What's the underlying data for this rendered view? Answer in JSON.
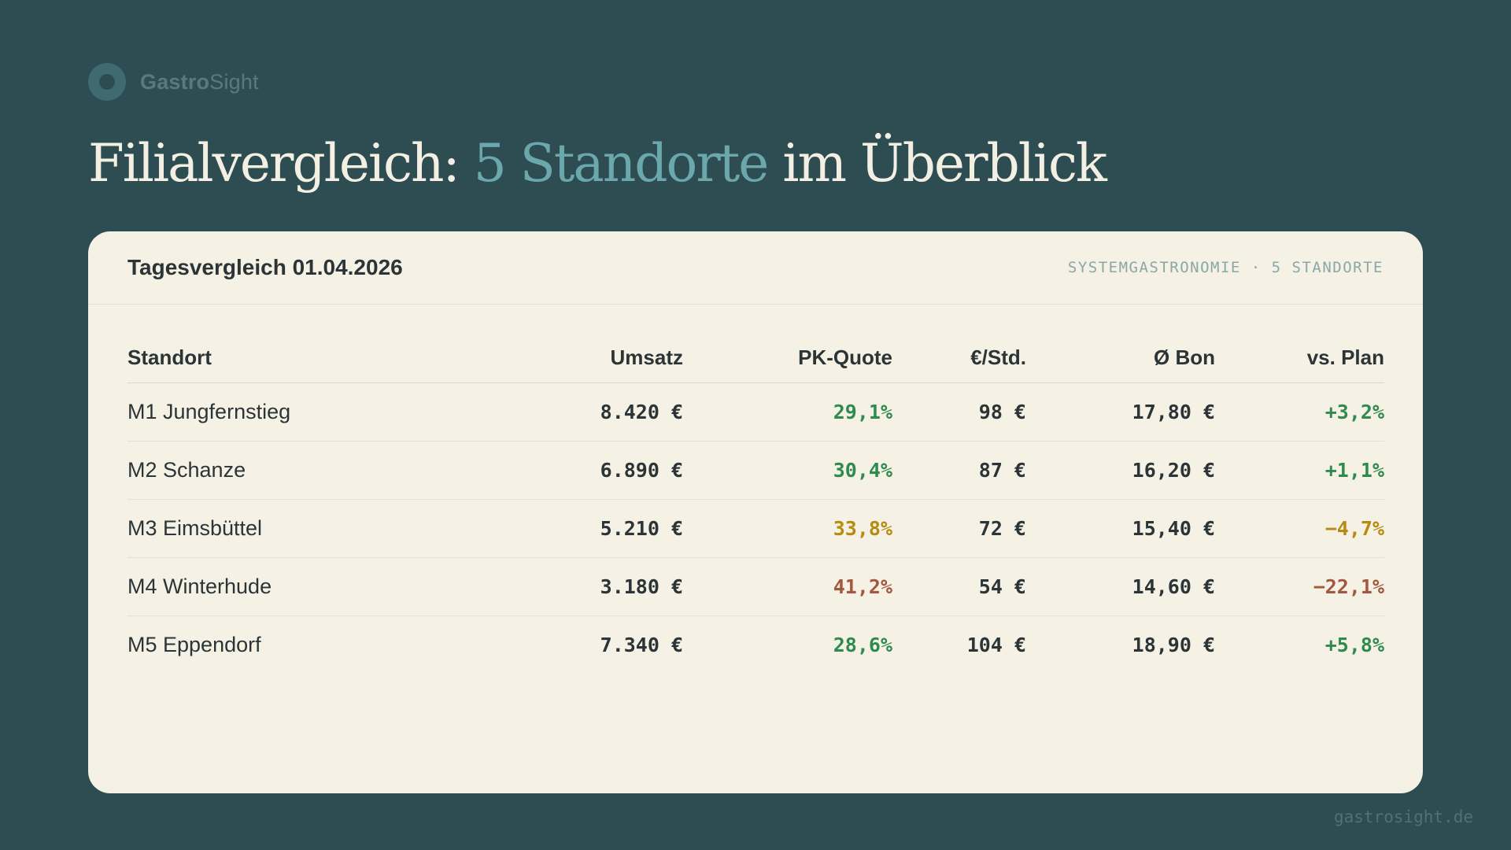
{
  "brand": {
    "bold": "Gastro",
    "light": "Sight",
    "icon": "ring-logo-icon"
  },
  "headline": {
    "prefix": "Filialvergleich: ",
    "accent": "5 Standorte",
    "suffix": " im Überblick"
  },
  "card": {
    "title": "Tagesvergleich 01.04.2026",
    "tag": "SYSTEMGASTRONOMIE · 5 STANDORTE"
  },
  "table": {
    "headers": [
      "Standort",
      "Umsatz",
      "PK-Quote",
      "€/Std.",
      "Ø Bon",
      "vs. Plan"
    ],
    "rows": [
      {
        "standort": "M1 Jungfernstieg",
        "umsatz": "8.420 €",
        "pk_quote": "29,1%",
        "eur_std": "98 €",
        "bon": "17,80 €",
        "plan": "+3,2%",
        "status": "good"
      },
      {
        "standort": "M2 Schanze",
        "umsatz": "6.890 €",
        "pk_quote": "30,4%",
        "eur_std": "87 €",
        "bon": "16,20 €",
        "plan": "+1,1%",
        "status": "good"
      },
      {
        "standort": "M3 Eimsbüttel",
        "umsatz": "5.210 €",
        "pk_quote": "33,8%",
        "eur_std": "72 €",
        "bon": "15,40 €",
        "plan": "−4,7%",
        "status": "warning"
      },
      {
        "standort": "M4 Winterhude",
        "umsatz": "3.180 €",
        "pk_quote": "41,2%",
        "eur_std": "54 €",
        "bon": "14,60 €",
        "plan": "−22,1%",
        "status": "critical"
      },
      {
        "standort": "M5 Eppendorf",
        "umsatz": "7.340 €",
        "pk_quote": "28,6%",
        "eur_std": "104 €",
        "bon": "18,90 €",
        "plan": "+5,8%",
        "status": "good"
      }
    ]
  },
  "footer": {
    "url": "gastrosight.de"
  },
  "colors": {
    "background": "#2e4d52",
    "card": "#f5f1e5",
    "accent": "#6aa8ad",
    "good": "#2f8a4f",
    "warning": "#b88a12",
    "critical": "#a2583e"
  }
}
